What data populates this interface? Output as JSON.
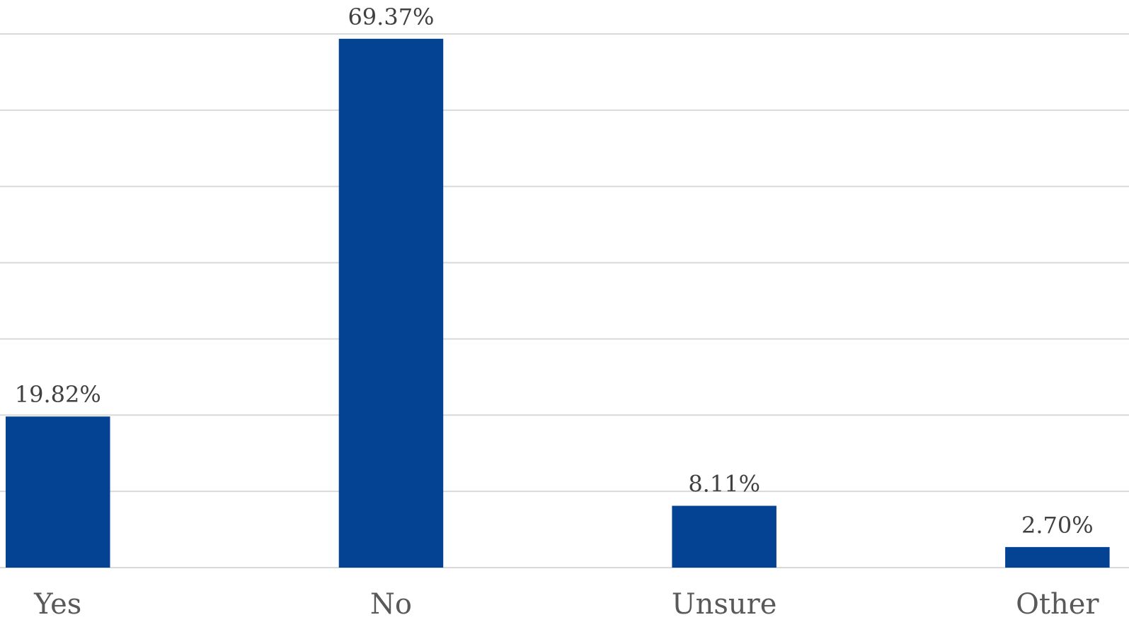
{
  "chart_data": {
    "type": "bar",
    "categories": [
      "Yes",
      "No",
      "Unsure",
      "Other"
    ],
    "values": [
      19.82,
      69.37,
      8.11,
      2.7
    ],
    "data_labels": [
      "19.82%",
      "69.37%",
      "8.11%",
      "2.70%"
    ],
    "ylim": [
      0,
      70
    ],
    "grid": true,
    "bar_color": "#044293",
    "title": "",
    "xlabel": "",
    "ylabel": ""
  }
}
